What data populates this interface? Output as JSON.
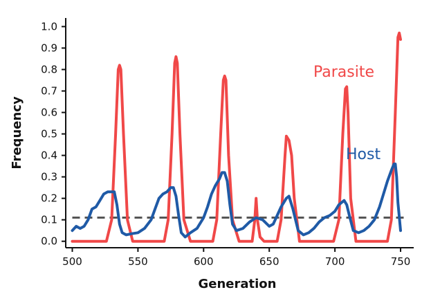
{
  "chart_data": {
    "type": "line",
    "title": "",
    "xlabel": "Generation",
    "ylabel": "Frequency",
    "xlim": [
      495,
      760
    ],
    "ylim": [
      -0.03,
      1.04
    ],
    "x_ticks": [
      500,
      550,
      600,
      650,
      700,
      750
    ],
    "x_tick_labels": [
      "500",
      "550",
      "600",
      "650",
      "700",
      "750"
    ],
    "y_ticks": [
      0.0,
      0.1,
      0.2,
      0.3,
      0.4,
      0.5,
      0.6,
      0.7,
      0.8,
      0.9,
      1.0
    ],
    "y_tick_labels": [
      "0.0",
      "0.1",
      "0.2",
      "0.3",
      "0.4",
      "0.5",
      "0.6",
      "0.7",
      "0.8",
      "0.9",
      "1.0"
    ],
    "grid": false,
    "series": [
      {
        "name": "Parasite",
        "color": "#f04848",
        "x": [
          500,
          526,
          530,
          533,
          535,
          536,
          537,
          539,
          542,
          546,
          570,
          573,
          576,
          578,
          579,
          580,
          582,
          585,
          590,
          607,
          610,
          613,
          615,
          616,
          617,
          619,
          622,
          627,
          637,
          639,
          640,
          641,
          643,
          646,
          656,
          659,
          662,
          663,
          665,
          667,
          669,
          673,
          699,
          703,
          706,
          708,
          709,
          710,
          712,
          716,
          740,
          743,
          746,
          748,
          749,
          750
        ],
        "y": [
          0.0,
          0.0,
          0.1,
          0.5,
          0.8,
          0.82,
          0.8,
          0.5,
          0.1,
          0.0,
          0.0,
          0.1,
          0.5,
          0.83,
          0.86,
          0.83,
          0.5,
          0.1,
          0.0,
          0.0,
          0.1,
          0.5,
          0.75,
          0.77,
          0.75,
          0.4,
          0.1,
          0.0,
          0.0,
          0.1,
          0.2,
          0.1,
          0.02,
          0.0,
          0.0,
          0.1,
          0.4,
          0.49,
          0.47,
          0.4,
          0.2,
          0.0,
          0.0,
          0.1,
          0.5,
          0.71,
          0.72,
          0.6,
          0.2,
          0.0,
          0.0,
          0.1,
          0.6,
          0.95,
          0.97,
          0.94
        ]
      },
      {
        "name": "Host",
        "color": "#1f5aa6",
        "x": [
          500,
          503,
          506,
          509,
          512,
          515,
          518,
          521,
          524,
          527,
          530,
          532,
          534,
          536,
          538,
          541,
          545,
          550,
          555,
          560,
          563,
          566,
          569,
          572,
          575,
          577,
          579,
          581,
          583,
          586,
          590,
          595,
          600,
          603,
          606,
          609,
          612,
          614,
          616,
          618,
          620,
          622,
          625,
          630,
          635,
          640,
          645,
          650,
          653,
          656,
          659,
          661,
          663,
          665,
          668,
          672,
          676,
          680,
          684,
          688,
          692,
          696,
          700,
          703,
          705,
          707,
          709,
          711,
          714,
          718,
          722,
          726,
          730,
          734,
          737,
          740,
          743,
          745,
          746,
          747,
          748,
          750
        ],
        "y": [
          0.05,
          0.07,
          0.06,
          0.07,
          0.1,
          0.15,
          0.16,
          0.19,
          0.22,
          0.23,
          0.23,
          0.23,
          0.17,
          0.08,
          0.04,
          0.03,
          0.035,
          0.04,
          0.06,
          0.1,
          0.15,
          0.2,
          0.22,
          0.23,
          0.25,
          0.25,
          0.21,
          0.12,
          0.04,
          0.02,
          0.04,
          0.06,
          0.11,
          0.16,
          0.22,
          0.26,
          0.29,
          0.32,
          0.32,
          0.28,
          0.17,
          0.08,
          0.05,
          0.06,
          0.09,
          0.11,
          0.1,
          0.07,
          0.08,
          0.12,
          0.16,
          0.18,
          0.2,
          0.21,
          0.15,
          0.05,
          0.03,
          0.04,
          0.06,
          0.09,
          0.11,
          0.12,
          0.14,
          0.17,
          0.18,
          0.19,
          0.17,
          0.12,
          0.05,
          0.04,
          0.05,
          0.07,
          0.1,
          0.16,
          0.22,
          0.28,
          0.33,
          0.36,
          0.36,
          0.3,
          0.18,
          0.05
        ]
      }
    ],
    "annotations": [
      {
        "text": "Parasite",
        "color": "#f04848"
      },
      {
        "text": "Host",
        "color": "#1f5aa6"
      }
    ],
    "reference_line": {
      "y": 0.11,
      "style": "dashed",
      "color": "#555555"
    }
  }
}
